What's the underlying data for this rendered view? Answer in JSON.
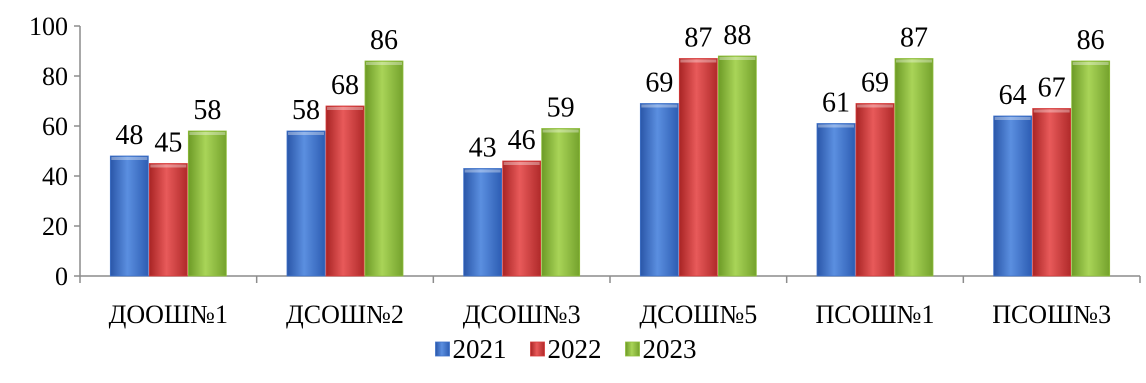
{
  "chart_data": {
    "type": "bar",
    "categories": [
      "ДООШ№1",
      "ДСОШ№2",
      "ДСОШ№3",
      "ДСОШ№5",
      "ПСОШ№1",
      "ПСОШ№3"
    ],
    "series": [
      {
        "name": "2021",
        "values": [
          48,
          58,
          43,
          69,
          61,
          64
        ],
        "color": "#3f72c9"
      },
      {
        "name": "2022",
        "values": [
          45,
          68,
          46,
          87,
          69,
          67
        ],
        "color": "#d63b3b"
      },
      {
        "name": "2023",
        "values": [
          58,
          86,
          59,
          88,
          87,
          86
        ],
        "color": "#8fbe3c"
      }
    ],
    "yticks": [
      "0",
      "20",
      "40",
      "60",
      "80",
      "100"
    ],
    "ylim": [
      0,
      100
    ],
    "grid": false,
    "legend": "bottom-center",
    "data_labels": true
  }
}
